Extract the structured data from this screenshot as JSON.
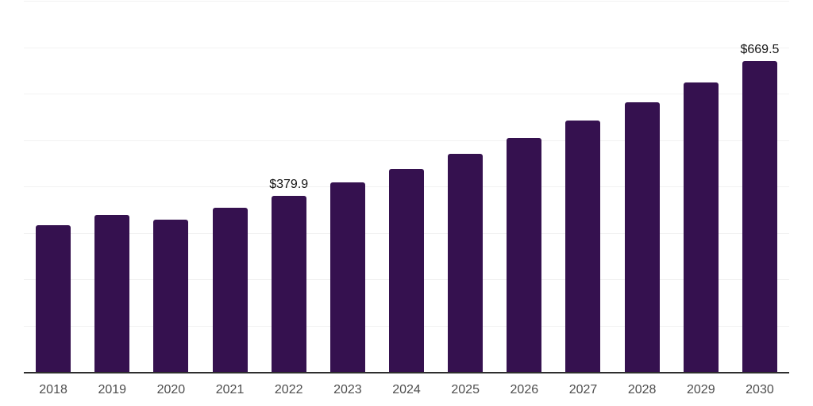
{
  "chart_data": {
    "type": "bar",
    "title": "",
    "xlabel": "",
    "ylabel": "",
    "categories": [
      "2018",
      "2019",
      "2020",
      "2021",
      "2022",
      "2023",
      "2024",
      "2025",
      "2026",
      "2027",
      "2028",
      "2029",
      "2030"
    ],
    "values": [
      315.8,
      338.4,
      328.9,
      353.4,
      379.9,
      407.8,
      437.7,
      469.8,
      504.3,
      541.4,
      581.1,
      623.7,
      669.5
    ],
    "point_labels": [
      "",
      "",
      "",
      "",
      "$379.9",
      "",
      "",
      "",
      "",
      "",
      "",
      "",
      "$669.5"
    ],
    "ylim": [
      0,
      800
    ],
    "gridline_step": 100,
    "grid": "horizontal",
    "legend": "none",
    "y_axis_labels_visible": false,
    "colors": {
      "bar": "#35114F",
      "gridline": "#f2f2f2",
      "axis_line": "#2e2e2e",
      "tick_label": "#4d4d4d",
      "value_label": "#141414",
      "background": "#ffffff"
    }
  }
}
